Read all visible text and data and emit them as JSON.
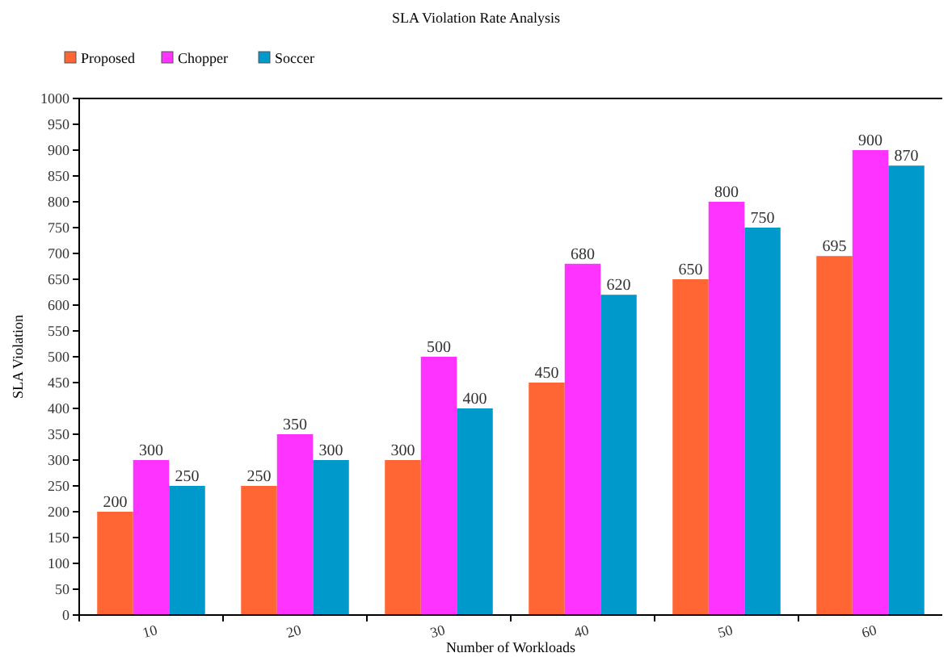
{
  "chart_data": {
    "type": "bar",
    "title": "SLA Violation Rate Analysis",
    "xlabel": "Number of Workloads",
    "ylabel": "SLA Violation",
    "categories": [
      "10",
      "20",
      "30",
      "40",
      "50",
      "60"
    ],
    "series": [
      {
        "name": "Proposed",
        "color": "#ff6633",
        "values": [
          200,
          250,
          300,
          450,
          650,
          695
        ]
      },
      {
        "name": "Chopper",
        "color": "#ff33ff",
        "values": [
          300,
          350,
          500,
          680,
          800,
          900
        ]
      },
      {
        "name": "Soccer",
        "color": "#0099cc",
        "values": [
          250,
          300,
          400,
          620,
          750,
          870
        ]
      }
    ],
    "ylim": [
      0,
      1000
    ],
    "yticks": [
      0,
      50,
      100,
      150,
      200,
      250,
      300,
      350,
      400,
      450,
      500,
      550,
      600,
      650,
      700,
      750,
      800,
      850,
      900,
      950,
      1000
    ],
    "data_labels": true,
    "legend": "top left",
    "grid": false
  }
}
